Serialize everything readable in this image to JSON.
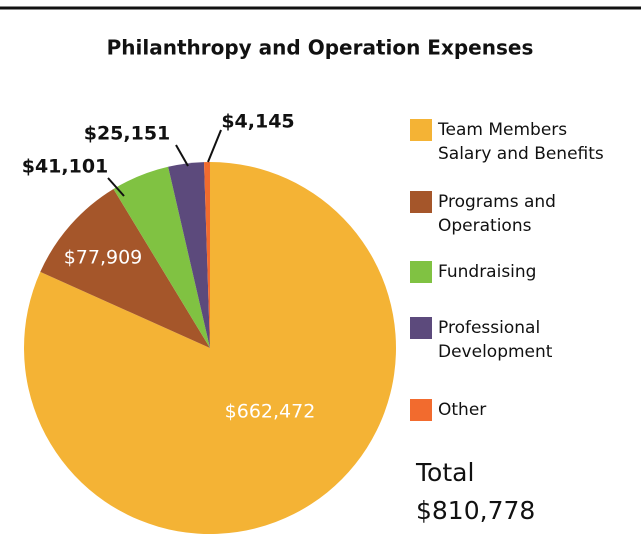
{
  "chart_data": {
    "type": "pie",
    "title": "Philanthropy and Operation Expenses",
    "categories": [
      "Team Members Salary and Benefits",
      "Programs and Operations",
      "Fundraising",
      "Professional Development",
      "Other"
    ],
    "values": [
      662472,
      77909,
      41101,
      25151,
      4145
    ],
    "value_labels": [
      "$662,472",
      "$77,909",
      "$41,101",
      "$25,151",
      "$4,145"
    ],
    "colors": [
      "#f4b335",
      "#a5562a",
      "#80c242",
      "#5c4a7c",
      "#f26b2e"
    ],
    "legend": "right",
    "total_label": "Total",
    "total_text": "$810,778"
  }
}
